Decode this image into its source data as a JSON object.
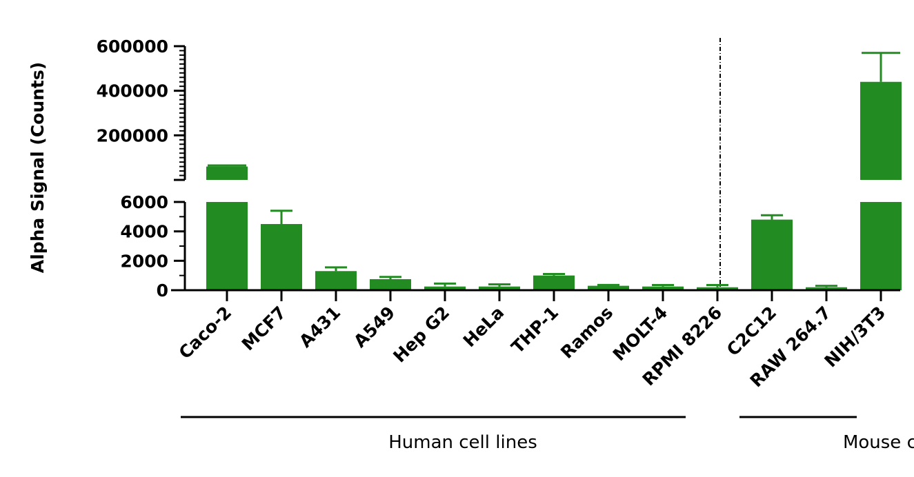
{
  "chart_data": {
    "type": "bar",
    "ylabel": "Alpha Signal (Counts)",
    "categories": [
      "Caco-2",
      "MCF7",
      "A431",
      "A549",
      "Hep G2",
      "HeLa",
      "THP-1",
      "Ramos",
      "MOLT-4",
      "RPMI 8226",
      "C2C12",
      "RAW 264.7",
      "NIH/3T3"
    ],
    "values": [
      60000,
      4500,
      1300,
      750,
      250,
      250,
      1000,
      300,
      250,
      200,
      4800,
      200,
      440000
    ],
    "errors": [
      5000,
      900,
      250,
      150,
      200,
      150,
      100,
      60,
      100,
      150,
      300,
      100,
      130000
    ],
    "bar_color": "#228b22",
    "y_axis": {
      "broken": true,
      "lower_segment": {
        "range": [
          0,
          6000
        ],
        "ticks": [
          "0",
          "2000",
          "4000",
          "6000"
        ]
      },
      "upper_segment": {
        "range": [
          0,
          600000
        ],
        "ticks": [
          "200000",
          "400000",
          "600000"
        ]
      }
    },
    "groups": [
      {
        "label": "Human cell lines",
        "categories": [
          "Caco-2",
          "MCF7",
          "A431",
          "A549",
          "Hep G2",
          "HeLa",
          "THP-1",
          "Ramos",
          "MOLT-4",
          "RPMI 8226"
        ]
      },
      {
        "label": "Mouse cell lines",
        "categories": [
          "C2C12",
          "RAW 264.7",
          "NIH/3T3"
        ]
      }
    ],
    "divider": "dotted line between RPMI 8226 and C2C12",
    "grid": false,
    "legend": "none"
  }
}
